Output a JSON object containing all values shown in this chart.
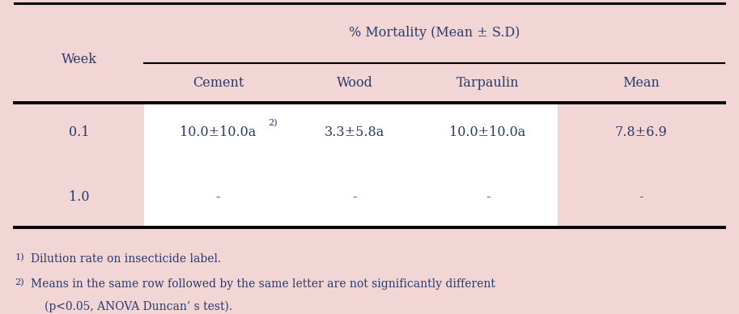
{
  "bg_color": "#f2d5d5",
  "white_color": "#ffffff",
  "text_color": "#2a3a6b",
  "footnote_color": "#2a3a6b",
  "col_header": "% Mortality (Mean ± S.D)",
  "row_header": "Week",
  "col_labels": [
    "Cement",
    "Wood",
    "Tarpaulin",
    "Mean"
  ],
  "row0_week": "0.1",
  "row0_cement": "10.0±10.0a",
  "row0_cement_sup": "2)",
  "row0_wood": "3.3±5.8a",
  "row0_tarpaulin": "10.0±10.0a",
  "row0_mean": "7.8±6.9",
  "row1_week": "1.0",
  "row1_cement": "-",
  "row1_wood": "-",
  "row1_tarpaulin": "-",
  "row1_mean": "-",
  "fn1_super": "1)",
  "fn1_text": "Dilution rate on insecticide label.",
  "fn2_super": "2)",
  "fn2_text": "Means in the same row followed by the same letter are not significantly different",
  "fn3_text": "(p<0.05, ANOVA Duncan’ s test).",
  "font_size": 11.5,
  "fn_font_size": 10.0
}
